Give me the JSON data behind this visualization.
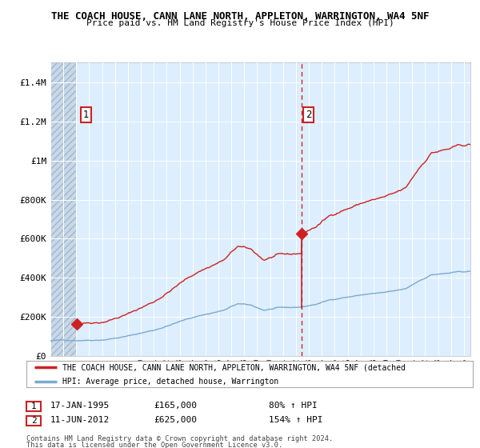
{
  "title1": "THE COACH HOUSE, CANN LANE NORTH, APPLETON, WARRINGTON, WA4 5NF",
  "title2": "Price paid vs. HM Land Registry's House Price Index (HPI)",
  "ylim": [
    0,
    1500000
  ],
  "yticks": [
    0,
    200000,
    400000,
    600000,
    800000,
    1000000,
    1200000,
    1400000
  ],
  "ytick_labels": [
    "£0",
    "£200K",
    "£400K",
    "£600K",
    "£800K",
    "£1M",
    "£1.2M",
    "£1.4M"
  ],
  "hpi_color": "#7aaad0",
  "price_color": "#cc2222",
  "bg_color": "#ddeeff",
  "hatch_color": "#c8d8e8",
  "point1_x": 1995.04,
  "point1_y": 165000,
  "point2_x": 2012.44,
  "point2_y": 625000,
  "point1_date": "17-JAN-1995",
  "point1_price": "£165,000",
  "point1_note": "80% ↑ HPI",
  "point2_date": "11-JUN-2012",
  "point2_price": "£625,000",
  "point2_note": "154% ↑ HPI",
  "legend_line1": "THE COACH HOUSE, CANN LANE NORTH, APPLETON, WARRINGTON, WA4 5NF (detached",
  "legend_line2": "HPI: Average price, detached house, Warrington",
  "footnote1": "Contains HM Land Registry data © Crown copyright and database right 2024.",
  "footnote2": "This data is licensed under the Open Government Licence v3.0.",
  "xmin": 1993.0,
  "xmax": 2025.5
}
